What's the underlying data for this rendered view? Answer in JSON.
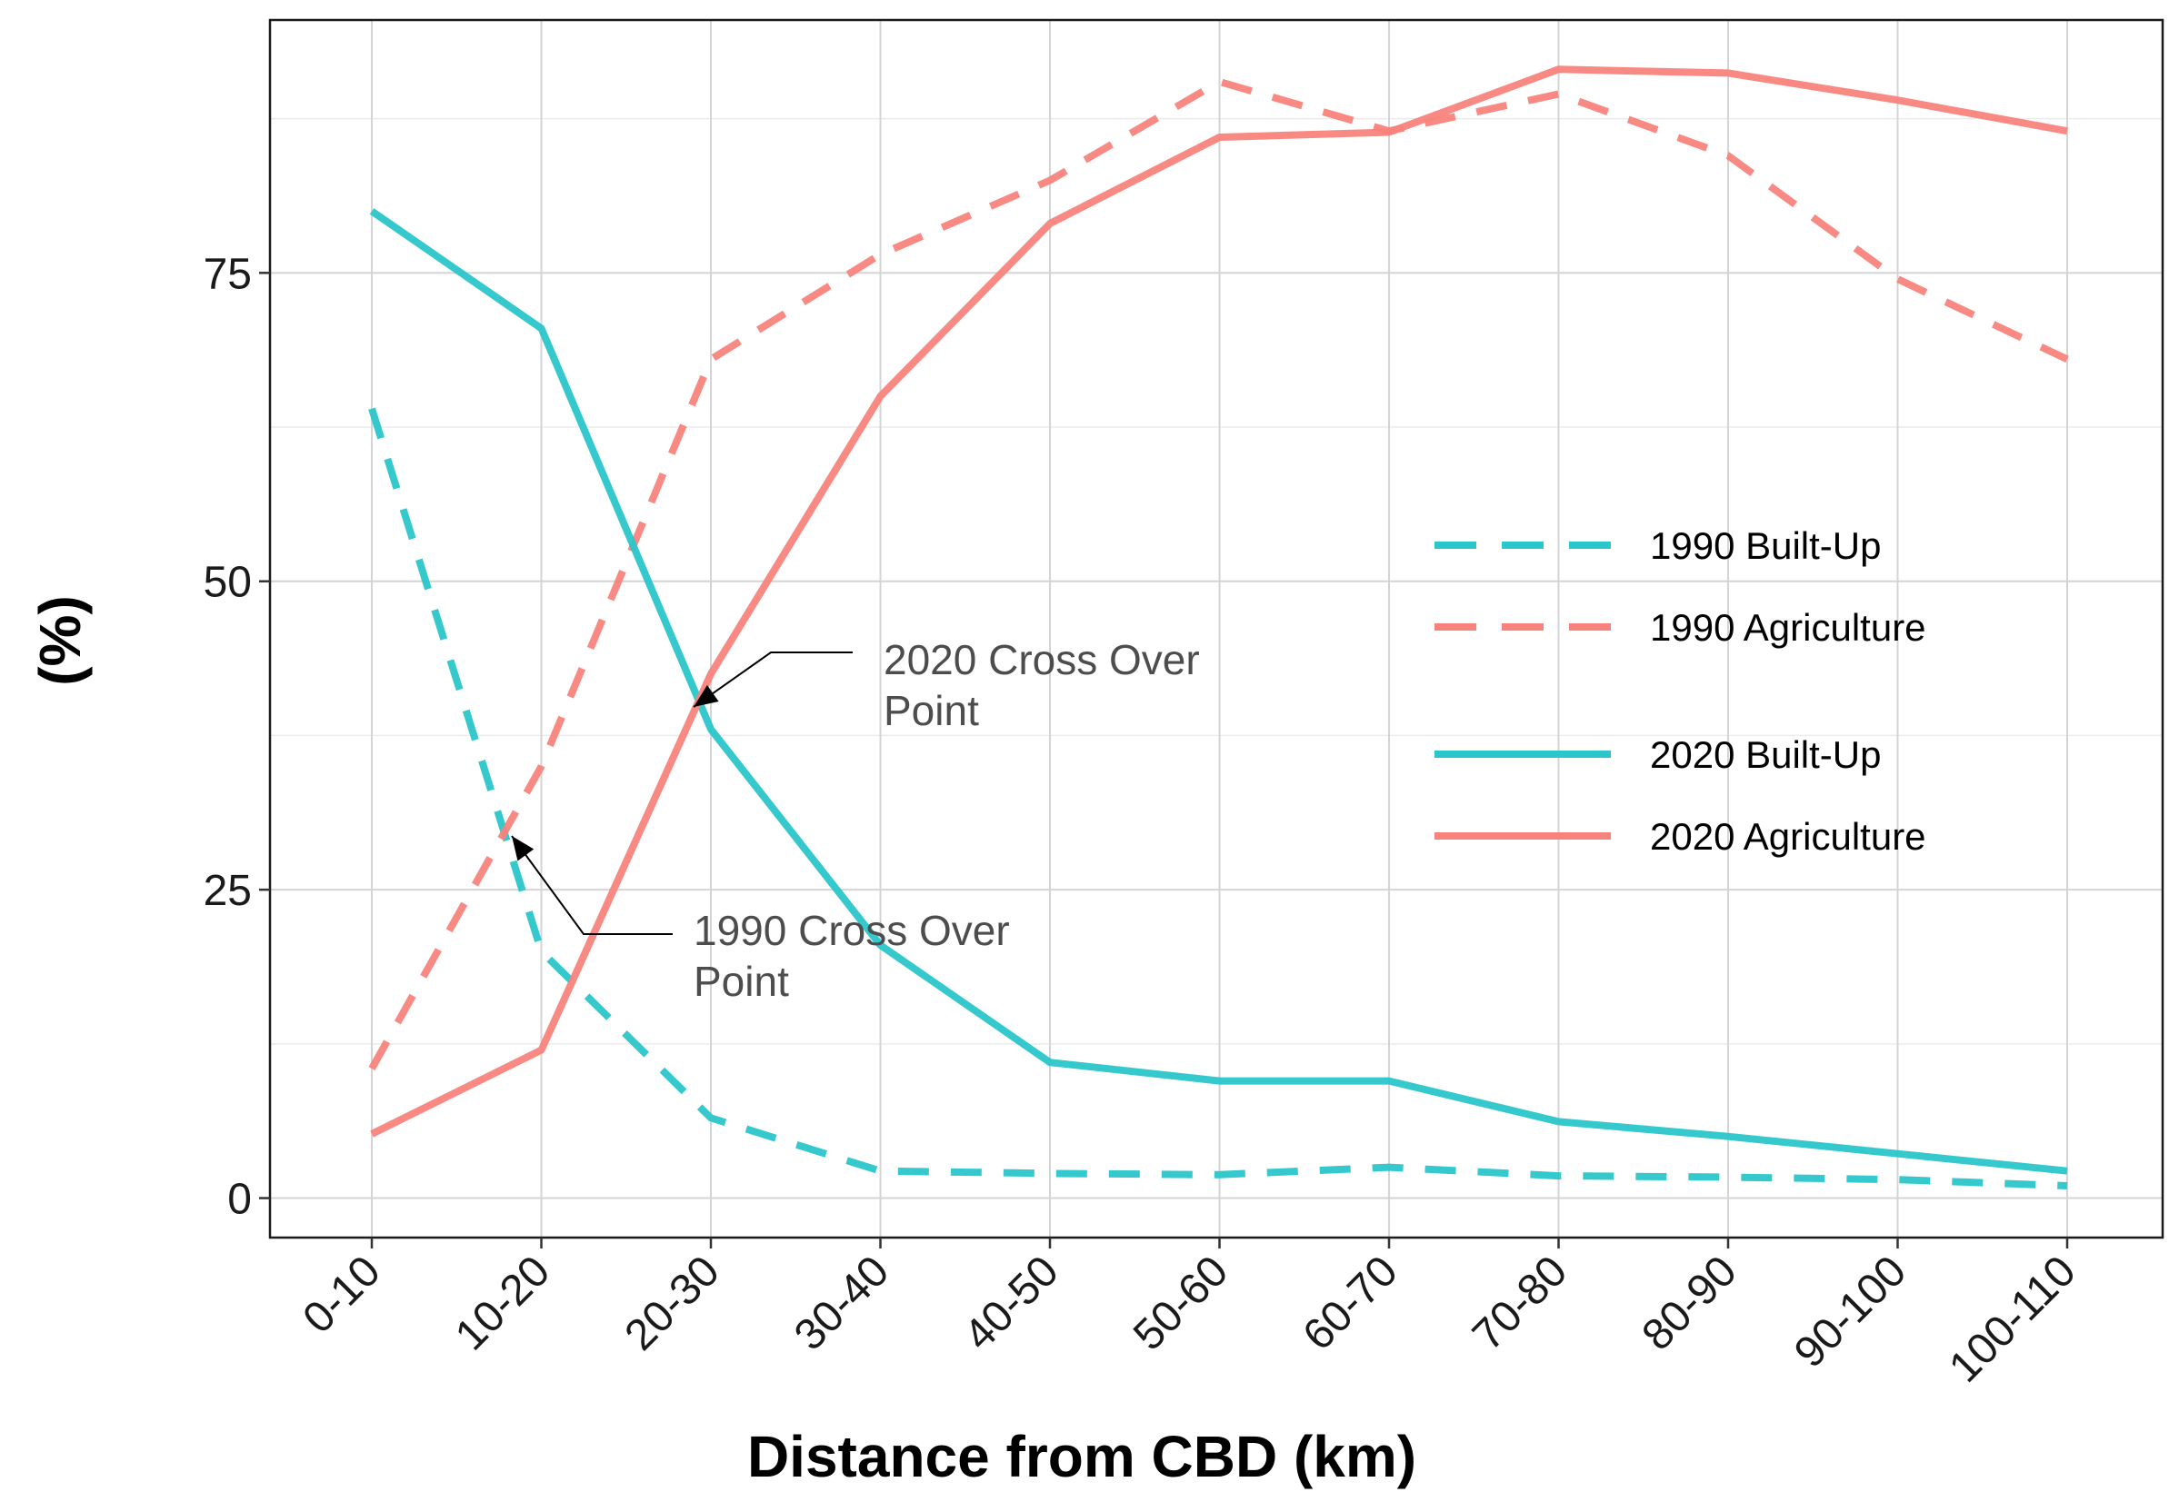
{
  "chart_data": {
    "type": "line",
    "title": "",
    "xlabel": "Distance from CBD (km)",
    "ylabel": "(%)",
    "categories": [
      "0-10",
      "10-20",
      "20-30",
      "30-40",
      "40-50",
      "50-60",
      "60-70",
      "70-80",
      "80-90",
      "90-100",
      "100-110"
    ],
    "ylim": [
      -3.2,
      95.5
    ],
    "yticks": [
      0,
      25,
      50,
      75
    ],
    "grid": true,
    "legend_position": "right-center",
    "series": [
      {
        "name": "1990 Built-Up",
        "color": "#2AC6CB",
        "line_style": "dashed",
        "values": [
          64,
          20,
          6.5,
          2.2,
          2.0,
          1.9,
          2.5,
          1.8,
          1.7,
          1.5,
          1.0
        ]
      },
      {
        "name": "1990 Agriculture",
        "color": "#F8837C",
        "line_style": "dashed",
        "values": [
          10.5,
          35,
          68,
          76.5,
          82.5,
          90.5,
          86.5,
          89.5,
          84.5,
          74.5,
          68
        ]
      },
      {
        "name": "2020 Built-Up",
        "color": "#2AC6CB",
        "line_style": "solid",
        "values": [
          80,
          70.5,
          38,
          20.5,
          11,
          9.5,
          9.5,
          6.2,
          5.0,
          3.6,
          2.2
        ]
      },
      {
        "name": "2020 Agriculture",
        "color": "#F8837C",
        "line_style": "solid",
        "values": [
          5.2,
          12,
          42.5,
          65,
          79,
          86,
          86.4,
          91.5,
          91.2,
          89,
          86.5
        ]
      }
    ],
    "annotations": [
      {
        "text_lines": [
          "2020 Cross Over",
          "Point"
        ],
        "target_x": "20-30",
        "target_y": 40
      },
      {
        "text_lines": [
          "1990 Cross Over",
          "Point"
        ],
        "target_x": "10-20",
        "target_y": 29
      }
    ]
  }
}
